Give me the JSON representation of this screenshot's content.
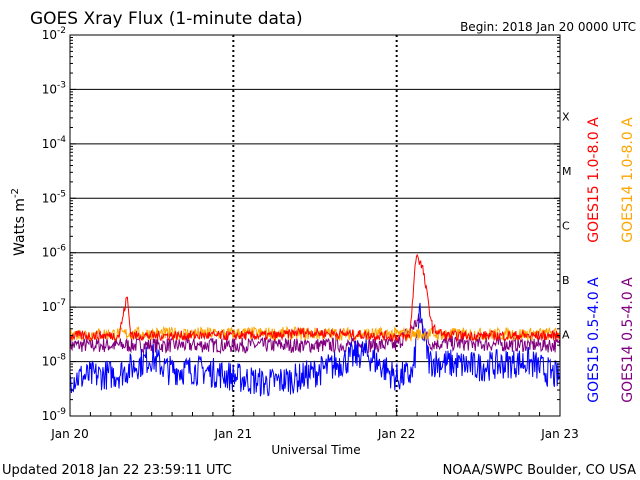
{
  "header": {
    "title": "GOES Xray Flux (1-minute data)",
    "begin": "Begin:  2018 Jan 20 0000 UTC"
  },
  "footer": {
    "updated": "Updated 2018 Jan 22 23:59:11 UTC",
    "credit": "NOAA/SWPC Boulder, CO USA"
  },
  "chart_data": {
    "type": "line",
    "title": "GOES Xray Flux (1-minute data)",
    "xlabel": "Universal Time",
    "ylabel": "Watts m",
    "ylabel_superscript": "-2",
    "yscale": "log",
    "ylim": [
      1e-09,
      0.01
    ],
    "xlim_days": [
      0,
      3
    ],
    "x_ticks": [
      "Jan 20",
      "Jan 21",
      "Jan 22",
      "Jan 23"
    ],
    "y_ticks": [
      {
        "base": "10",
        "exp": "-9"
      },
      {
        "base": "10",
        "exp": "-8"
      },
      {
        "base": "10",
        "exp": "-7"
      },
      {
        "base": "10",
        "exp": "-6"
      },
      {
        "base": "10",
        "exp": "-5"
      },
      {
        "base": "10",
        "exp": "-4"
      },
      {
        "base": "10",
        "exp": "-3"
      },
      {
        "base": "10",
        "exp": "-2"
      }
    ],
    "flare_classes": [
      {
        "label": "A",
        "value": 1e-08
      },
      {
        "label": "B",
        "value": 1e-07
      },
      {
        "label": "C",
        "value": 1e-06
      },
      {
        "label": "M",
        "value": 1e-05
      },
      {
        "label": "X",
        "value": 0.0001
      }
    ],
    "series": [
      {
        "name": "GOES15 1.0-8.0 A",
        "color": "#ff0000",
        "x": [
          0.0,
          0.3,
          0.35,
          0.37,
          0.39,
          0.45,
          1.0,
          1.3,
          1.4,
          1.9,
          2.08,
          2.12,
          2.16,
          2.22,
          2.3,
          3.0
        ],
        "y": [
          3e-08,
          3e-08,
          1.6e-07,
          3.5e-08,
          3e-08,
          3e-08,
          3e-08,
          3e-08,
          3.5e-08,
          3e-08,
          2.8e-08,
          1e-06,
          5e-07,
          4e-08,
          3e-08,
          3e-08
        ]
      },
      {
        "name": "GOES14 1.0-8.0 A",
        "color": "#ffa500",
        "x": [
          0.0,
          1.0,
          2.0,
          3.0
        ],
        "y": [
          3.2e-08,
          3.3e-08,
          3.2e-08,
          3.2e-08
        ]
      },
      {
        "name": "GOES15 0.5-4.0 A",
        "color": "#0000ff",
        "x": [
          0.0,
          0.3,
          0.5,
          0.6,
          0.8,
          1.2,
          1.4,
          1.6,
          1.8,
          2.0,
          2.1,
          2.14,
          2.2,
          2.5,
          2.8,
          3.0
        ],
        "y": [
          5e-09,
          6e-09,
          1.2e-08,
          7e-09,
          7e-09,
          4e-09,
          5e-09,
          8e-09,
          1.5e-08,
          5e-09,
          6e-09,
          7e-08,
          1e-08,
          8e-09,
          1e-08,
          5e-09
        ]
      },
      {
        "name": "GOES14 0.5-4.0 A",
        "color": "#800080",
        "x": [
          0.0,
          1.0,
          2.0,
          2.14,
          2.2,
          3.0
        ],
        "y": [
          2e-08,
          2e-08,
          2e-08,
          6e-08,
          2.2e-08,
          2e-08
        ]
      }
    ],
    "grid": true
  }
}
